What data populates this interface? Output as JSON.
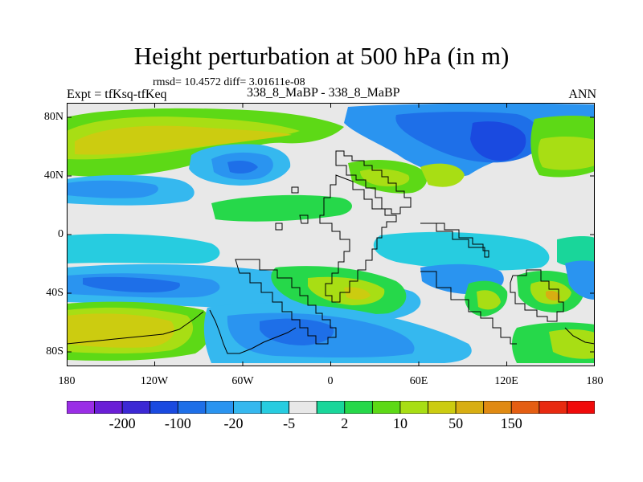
{
  "title": "Height perturbation at 500 hPa (in m)",
  "stats": "rmsd= 10.4572 diff= 3.01611e-08",
  "expt": "Expt = tfKsq-tfKeq",
  "case": "338_8_MaBP - 338_8_MaBP",
  "season": "ANN",
  "y_ticks": [
    "80N",
    "40N",
    "0",
    "40S",
    "80S"
  ],
  "x_ticks": [
    "180",
    "120W",
    "60W",
    "0",
    "60E",
    "120E",
    "180"
  ],
  "colorbar": {
    "colors": [
      "#9a2ee6",
      "#6a1ed6",
      "#3c28d4",
      "#1a4ae0",
      "#1e6fe8",
      "#2a94f0",
      "#35b8ef",
      "#27cce0",
      "#e8e8e8",
      "#19d69a",
      "#26d84a",
      "#5dd916",
      "#a8de14",
      "#cccc10",
      "#d8ae12",
      "#e08a12",
      "#e45e12",
      "#e82a10",
      "#f00a0a"
    ],
    "labels": [
      "-200",
      "-100",
      "-20",
      "-5",
      "2",
      "10",
      "50",
      "150"
    ],
    "label_after_box": [
      1,
      3,
      5,
      7,
      9,
      11,
      13,
      15
    ]
  }
}
